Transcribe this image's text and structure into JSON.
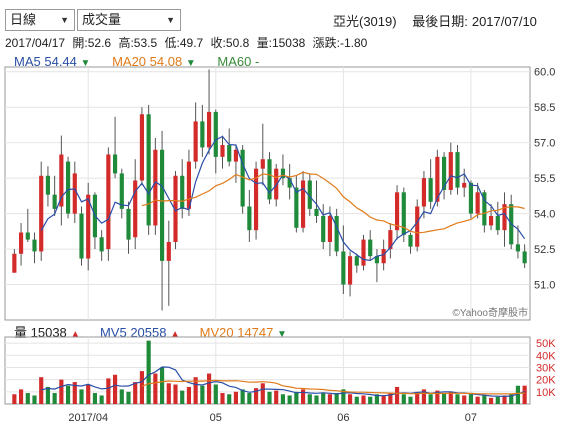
{
  "controls": {
    "period_select": "日線",
    "indicator_select": "成交量"
  },
  "header": {
    "stock": "亞光(3019)",
    "last_date_label": "最後日期:",
    "last_date": "2017/07/10"
  },
  "ohlc": {
    "date": "2017/04/17",
    "open_label": "開:",
    "open": "52.6",
    "high_label": "高:",
    "high": "53.5",
    "low_label": "低:",
    "low": "49.7",
    "close_label": "收:",
    "close": "50.8",
    "volume_label": "量:",
    "volume": "15038",
    "change_label": "漲跌:",
    "change": "-1.80"
  },
  "ma_legend": [
    {
      "name": "MA5",
      "value": "54.44",
      "direction": "down",
      "color": "#2a4fa8"
    },
    {
      "name": "MA20",
      "value": "54.08",
      "direction": "down",
      "color": "#e07b1a"
    },
    {
      "name": "MA60",
      "value": "-",
      "direction": "",
      "color": "#3a8a3a"
    }
  ],
  "vol_legend": [
    {
      "name": "量",
      "value": "15038",
      "direction": "up",
      "color": "#222222"
    },
    {
      "name": "MV5",
      "value": "20558",
      "direction": "up",
      "color": "#2a4fa8"
    },
    {
      "name": "MV20",
      "value": "14747",
      "direction": "down",
      "color": "#e07b1a"
    }
  ],
  "watermark": "©Yahoo奇摩股市",
  "colors": {
    "up": "#d32a2a",
    "down": "#1f8a3a",
    "ma5": "#2a4fa8",
    "ma20": "#e07b1a",
    "grid": "#e4e4e4",
    "frame": "#9a9a9a"
  },
  "chart_data": {
    "type": "candlestick",
    "price_axis": {
      "ticks": [
        "60.0",
        "58.5",
        "57.0",
        "55.5",
        "54.0",
        "52.5",
        "51.0"
      ],
      "ylim": [
        49.5,
        60.2
      ]
    },
    "volume_axis": {
      "ticks": [
        "50K",
        "40K",
        "30K",
        "20K",
        "10K"
      ],
      "ylim": [
        0,
        55000
      ]
    },
    "x_ticks": [
      {
        "label": "2017/04",
        "index": 11
      },
      {
        "label": "05",
        "index": 30
      },
      {
        "label": "06",
        "index": 49
      },
      {
        "label": "07",
        "index": 68
      }
    ],
    "candles": [
      [
        51.5,
        52.5,
        51.5,
        52.3
      ],
      [
        52.3,
        53.6,
        51.8,
        53.2
      ],
      [
        53.2,
        54.2,
        52.8,
        52.9
      ],
      [
        52.9,
        53.2,
        51.9,
        52.4
      ],
      [
        52.4,
        56.2,
        52.0,
        55.6
      ],
      [
        55.6,
        56.0,
        54.3,
        54.8
      ],
      [
        54.8,
        55.6,
        53.9,
        54.2
      ],
      [
        54.3,
        57.3,
        53.5,
        56.5
      ],
      [
        56.2,
        56.4,
        53.8,
        54.0
      ],
      [
        54.0,
        56.2,
        53.6,
        55.7
      ],
      [
        54.0,
        54.3,
        51.8,
        52.1
      ],
      [
        52.1,
        55.3,
        51.6,
        54.8
      ],
      [
        54.8,
        54.9,
        52.5,
        53.0
      ],
      [
        53.0,
        53.3,
        52.0,
        52.4
      ],
      [
        52.5,
        56.8,
        52.0,
        56.5
      ],
      [
        56.5,
        58.1,
        55.5,
        55.7
      ],
      [
        55.7,
        55.9,
        53.8,
        54.2
      ],
      [
        54.2,
        54.5,
        52.3,
        52.9
      ],
      [
        53.0,
        56.3,
        52.5,
        55.4
      ],
      [
        55.4,
        58.5,
        55.2,
        58.2
      ],
      [
        58.2,
        58.6,
        53.1,
        53.5
      ],
      [
        53.5,
        57.2,
        53.1,
        56.7
      ],
      [
        56.7,
        57.5,
        49.9,
        52.0
      ],
      [
        52.0,
        53.7,
        50.1,
        52.8
      ],
      [
        52.8,
        55.8,
        52.5,
        55.6
      ],
      [
        55.6,
        56.3,
        53.8,
        54.2
      ],
      [
        54.2,
        56.7,
        53.9,
        56.2
      ],
      [
        56.2,
        58.7,
        55.9,
        57.9
      ],
      [
        57.9,
        58.6,
        56.4,
        56.8
      ],
      [
        56.8,
        60.1,
        56.5,
        58.3
      ],
      [
        58.3,
        58.4,
        55.7,
        56.4
      ],
      [
        56.4,
        57.3,
        55.9,
        56.9
      ],
      [
        56.9,
        57.6,
        56.0,
        56.2
      ],
      [
        56.2,
        56.9,
        55.3,
        56.7
      ],
      [
        56.7,
        56.9,
        54.0,
        54.3
      ],
      [
        54.3,
        55.0,
        52.8,
        53.3
      ],
      [
        53.3,
        56.2,
        52.9,
        55.9
      ],
      [
        55.9,
        57.8,
        55.2,
        56.3
      ],
      [
        56.3,
        56.6,
        54.4,
        54.6
      ],
      [
        54.6,
        56.1,
        54.3,
        55.9
      ],
      [
        55.9,
        56.5,
        55.2,
        55.5
      ],
      [
        55.5,
        56.1,
        54.6,
        55.1
      ],
      [
        55.1,
        55.6,
        53.2,
        53.4
      ],
      [
        53.4,
        55.8,
        53.2,
        55.4
      ],
      [
        55.4,
        55.7,
        53.9,
        54.2
      ],
      [
        54.2,
        55.4,
        53.6,
        53.9
      ],
      [
        53.9,
        54.4,
        52.5,
        52.8
      ],
      [
        52.8,
        54.3,
        52.2,
        53.9
      ],
      [
        53.9,
        54.2,
        52.2,
        52.4
      ],
      [
        52.4,
        53.5,
        50.6,
        51.0
      ],
      [
        51.0,
        52.4,
        50.5,
        52.2
      ],
      [
        52.2,
        52.3,
        51.5,
        51.8
      ],
      [
        51.8,
        53.1,
        51.6,
        52.9
      ],
      [
        52.9,
        53.3,
        52.0,
        52.2
      ],
      [
        52.2,
        52.5,
        51.1,
        51.9
      ],
      [
        51.9,
        52.9,
        51.6,
        52.5
      ],
      [
        52.5,
        53.6,
        52.1,
        53.3
      ],
      [
        53.3,
        55.2,
        52.9,
        54.9
      ],
      [
        54.9,
        55.1,
        52.8,
        53.1
      ],
      [
        53.1,
        53.2,
        52.3,
        52.6
      ],
      [
        52.6,
        54.6,
        52.4,
        54.3
      ],
      [
        54.3,
        55.8,
        53.8,
        55.5
      ],
      [
        55.5,
        56.3,
        54.2,
        54.5
      ],
      [
        54.5,
        56.7,
        54.3,
        56.4
      ],
      [
        56.4,
        56.6,
        54.6,
        55.0
      ],
      [
        55.0,
        57.0,
        54.8,
        56.6
      ],
      [
        56.6,
        56.9,
        54.8,
        55.1
      ],
      [
        55.1,
        55.9,
        54.7,
        55.3
      ],
      [
        55.3,
        55.4,
        53.8,
        54.0
      ],
      [
        54.0,
        55.3,
        53.8,
        54.9
      ],
      [
        54.9,
        55.0,
        53.2,
        53.5
      ],
      [
        53.5,
        54.4,
        53.3,
        53.9
      ],
      [
        53.9,
        54.5,
        53.1,
        53.3
      ],
      [
        53.3,
        54.9,
        52.6,
        54.4
      ],
      [
        54.4,
        54.8,
        52.5,
        52.7
      ],
      [
        52.7,
        53.5,
        52.1,
        52.4
      ],
      [
        52.4,
        52.7,
        51.7,
        51.9
      ]
    ],
    "volume": [
      8000,
      12000,
      9000,
      7000,
      22000,
      14000,
      9000,
      20000,
      15000,
      18000,
      12000,
      16000,
      9000,
      7000,
      21000,
      24000,
      12000,
      10000,
      18000,
      27000,
      52000,
      25000,
      30000,
      17000,
      16000,
      11000,
      14000,
      22000,
      15000,
      25000,
      16000,
      9000,
      8000,
      10000,
      12000,
      9000,
      13000,
      17000,
      10000,
      11000,
      8000,
      7000,
      10000,
      12000,
      8000,
      7000,
      9000,
      8000,
      9000,
      12000,
      8000,
      6000,
      7000,
      6000,
      8000,
      7000,
      9000,
      14000,
      8000,
      6000,
      10000,
      12000,
      8000,
      11000,
      9000,
      10000,
      8000,
      7000,
      8000,
      6000,
      7000,
      5000,
      6000,
      7000,
      8000,
      15000,
      15038
    ],
    "volume_up": [
      1,
      1,
      0,
      0,
      1,
      0,
      0,
      1,
      0,
      1,
      0,
      1,
      0,
      0,
      1,
      1,
      0,
      0,
      1,
      1,
      0,
      1,
      0,
      1,
      1,
      0,
      1,
      1,
      0,
      1,
      0,
      1,
      0,
      1,
      0,
      0,
      1,
      1,
      0,
      1,
      0,
      0,
      0,
      1,
      0,
      0,
      0,
      1,
      0,
      0,
      1,
      0,
      1,
      0,
      0,
      1,
      1,
      1,
      0,
      0,
      1,
      1,
      0,
      1,
      0,
      1,
      0,
      1,
      0,
      1,
      0,
      1,
      0,
      1,
      0,
      0,
      1
    ]
  }
}
